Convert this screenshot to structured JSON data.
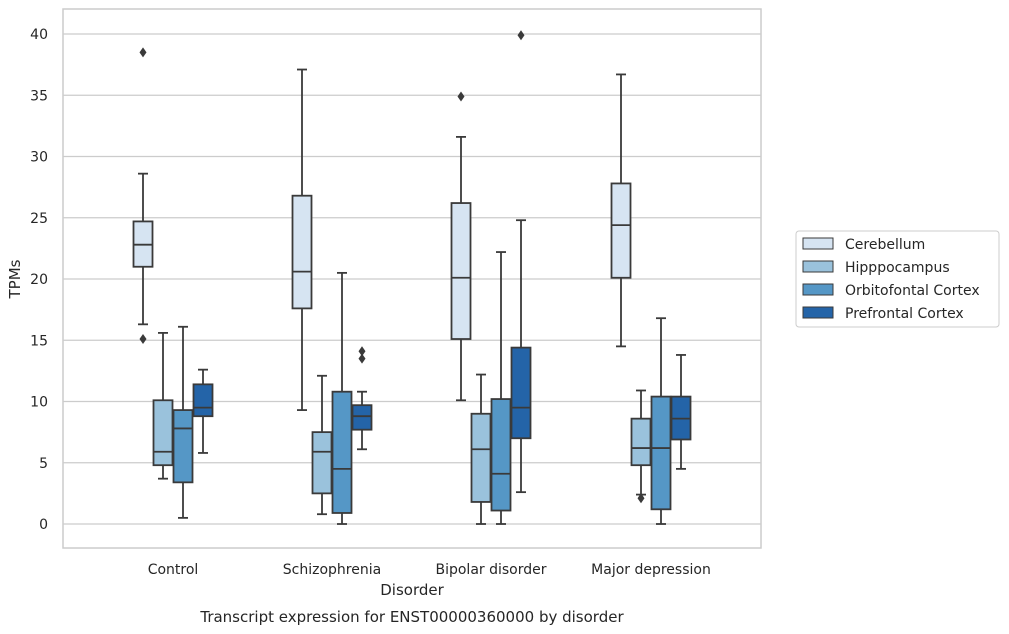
{
  "chart_data": {
    "type": "box",
    "title": "",
    "caption": "Transcript expression for ENST00000360000 by disorder",
    "xlabel": "Disorder",
    "ylabel": "TPMs",
    "ylim": [
      -1.9,
      42
    ],
    "yticks": [
      0,
      5,
      10,
      15,
      20,
      25,
      30,
      35,
      40
    ],
    "grid": "horizontal",
    "legend_position": "right",
    "categories": [
      "Control",
      "Schizophrenia",
      "Bipolar disorder",
      "Major depression"
    ],
    "series": [
      {
        "name": "Cerebellum",
        "color": "#d6e4f2",
        "boxes": [
          {
            "whisker_low": 16.3,
            "q1": 21.0,
            "median": 22.8,
            "q3": 24.7,
            "whisker_high": 28.6,
            "outliers": [
              38.5,
              15.1
            ]
          },
          {
            "whisker_low": 9.3,
            "q1": 17.6,
            "median": 20.6,
            "q3": 26.8,
            "whisker_high": 37.1,
            "outliers": []
          },
          {
            "whisker_low": 10.1,
            "q1": 15.1,
            "median": 20.1,
            "q3": 26.2,
            "whisker_high": 31.6,
            "outliers": [
              34.9
            ]
          },
          {
            "whisker_low": 14.5,
            "q1": 20.1,
            "median": 24.4,
            "q3": 27.8,
            "whisker_high": 36.7,
            "outliers": []
          }
        ]
      },
      {
        "name": "Hipppocampus",
        "color": "#9ac2dc",
        "boxes": [
          {
            "whisker_low": 3.7,
            "q1": 4.8,
            "median": 5.9,
            "q3": 10.1,
            "whisker_high": 15.6,
            "outliers": []
          },
          {
            "whisker_low": 0.8,
            "q1": 2.5,
            "median": 5.9,
            "q3": 7.5,
            "whisker_high": 12.1,
            "outliers": []
          },
          {
            "whisker_low": 0.0,
            "q1": 1.8,
            "median": 6.1,
            "q3": 9.0,
            "whisker_high": 12.2,
            "outliers": []
          },
          {
            "whisker_low": 2.4,
            "q1": 4.8,
            "median": 6.2,
            "q3": 8.6,
            "whisker_high": 10.9,
            "outliers": [
              2.1
            ]
          }
        ]
      },
      {
        "name": "Orbitofontal Cortex",
        "color": "#5597c6",
        "boxes": [
          {
            "whisker_low": 0.5,
            "q1": 3.4,
            "median": 7.8,
            "q3": 9.3,
            "whisker_high": 16.1,
            "outliers": []
          },
          {
            "whisker_low": 0.0,
            "q1": 0.9,
            "median": 4.5,
            "q3": 10.8,
            "whisker_high": 20.5,
            "outliers": []
          },
          {
            "whisker_low": 0.0,
            "q1": 1.1,
            "median": 4.1,
            "q3": 10.2,
            "whisker_high": 22.2,
            "outliers": []
          },
          {
            "whisker_low": 0.0,
            "q1": 1.2,
            "median": 6.2,
            "q3": 10.4,
            "whisker_high": 16.8,
            "outliers": []
          }
        ]
      },
      {
        "name": "Prefrontal Cortex",
        "color": "#2464a8",
        "boxes": [
          {
            "whisker_low": 5.8,
            "q1": 8.8,
            "median": 9.5,
            "q3": 11.4,
            "whisker_high": 12.6,
            "outliers": []
          },
          {
            "whisker_low": 6.1,
            "q1": 7.7,
            "median": 8.8,
            "q3": 9.7,
            "whisker_high": 10.8,
            "outliers": [
              14.1,
              13.5
            ]
          },
          {
            "whisker_low": 2.6,
            "q1": 7.0,
            "median": 9.5,
            "q3": 14.4,
            "whisker_high": 24.8,
            "outliers": [
              39.9
            ]
          },
          {
            "whisker_low": 4.5,
            "q1": 6.9,
            "median": 8.6,
            "q3": 10.4,
            "whisker_high": 13.8,
            "outliers": []
          }
        ]
      }
    ]
  }
}
